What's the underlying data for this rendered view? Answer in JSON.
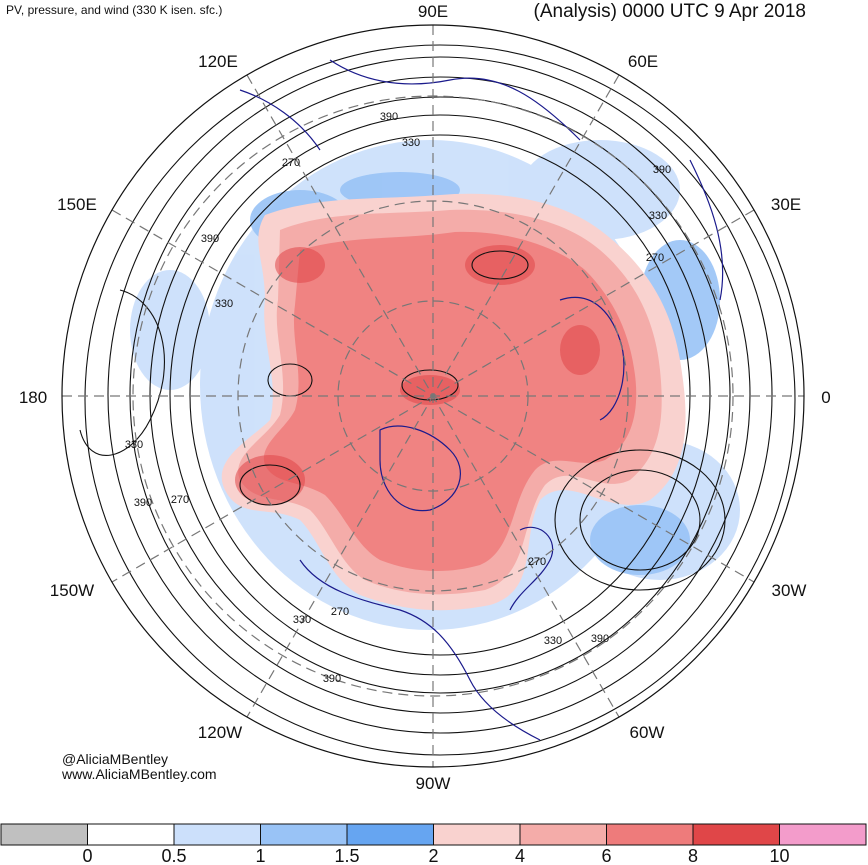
{
  "header": {
    "left_title": "PV, pressure, and wind (330 K isen. sfc.)",
    "right_title": "(Analysis) 0000 UTC 9 Apr 2018"
  },
  "longitude_labels": [
    "90E",
    "60E",
    "30E",
    "0",
    "30W",
    "60W",
    "90W",
    "120W",
    "150W",
    "180",
    "150E",
    "120E"
  ],
  "contour_labels": [
    "390",
    "330",
    "270",
    "390",
    "330",
    "330",
    "390",
    "270",
    "390",
    "330",
    "270",
    "390",
    "330",
    "390",
    "330",
    "270",
    "270",
    "330",
    "390",
    "390"
  ],
  "credit": {
    "handle": "@AliciaMBentley",
    "website": "www.AliciaMBentley.com"
  },
  "colorbar": {
    "colors": [
      "#c0c0c0",
      "#ffffff",
      "#cce0fb",
      "#99c3f6",
      "#66a5f1",
      "#f9d2cf",
      "#f4aca9",
      "#ee7b7b",
      "#e04648",
      "#f39ccb"
    ],
    "tick_labels": [
      "0",
      "0.5",
      "1",
      "1.5",
      "2",
      "4",
      "6",
      "8",
      "10"
    ]
  }
}
